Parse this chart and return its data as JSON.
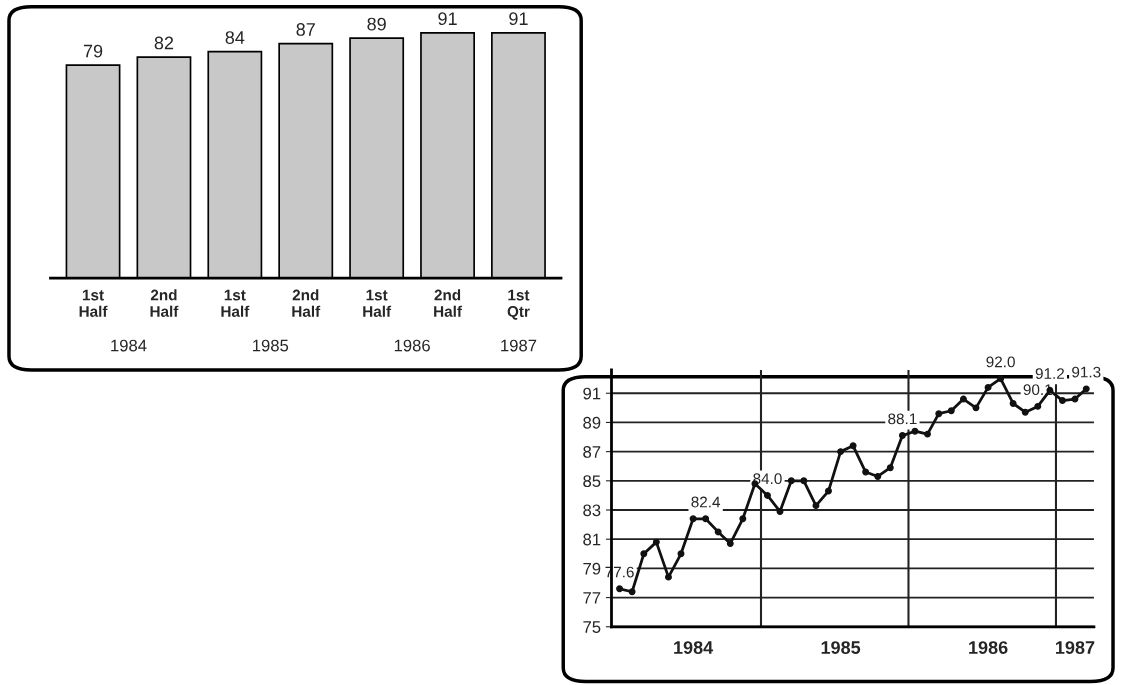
{
  "chart_data": [
    {
      "type": "bar",
      "categories": [
        "1st\nHalf",
        "2nd\nHalf",
        "1st\nHalf",
        "2nd\nHalf",
        "1st\nHalf",
        "2nd\nHalf",
        "1st\nQtr"
      ],
      "values": [
        79,
        82,
        84,
        87,
        89,
        91,
        91
      ],
      "color": "#c8c8c8",
      "data_labels": true,
      "tick_labels": "x",
      "annotations": [
        "1984",
        "1985",
        "1986",
        "1987"
      ]
    },
    {
      "type": "line",
      "x": [
        "1984-01",
        "1984-02",
        "1984-03",
        "1984-04",
        "1984-05",
        "1984-06",
        "1984-07",
        "1984-08",
        "1984-09",
        "1984-10",
        "1984-11",
        "1984-12",
        "1985-01",
        "1985-02",
        "1985-03",
        "1985-04",
        "1985-05",
        "1985-06",
        "1985-07",
        "1985-08",
        "1985-09",
        "1985-10",
        "1985-11",
        "1985-12",
        "1986-01",
        "1986-02",
        "1986-03",
        "1986-04",
        "1986-05",
        "1986-06",
        "1986-07",
        "1986-08",
        "1986-09",
        "1986-10",
        "1986-11",
        "1986-12",
        "1987-01",
        "1987-02",
        "1987-03"
      ],
      "values": [
        77.6,
        77.4,
        80.0,
        80.8,
        78.4,
        80.0,
        82.4,
        82.4,
        81.5,
        80.7,
        82.4,
        84.8,
        84.0,
        82.9,
        85.0,
        85.0,
        83.3,
        84.3,
        87.0,
        87.4,
        85.6,
        85.3,
        85.9,
        88.1,
        88.4,
        88.2,
        89.6,
        89.8,
        90.6,
        90.0,
        91.4,
        92.0,
        90.3,
        89.7,
        90.1,
        91.2,
        90.5,
        90.6,
        91.3
      ],
      "color": "#111111",
      "marker": "circle",
      "line_style": "solid",
      "xlim": [
        "1983-12-12",
        "1987-03-20"
      ],
      "ylim": [
        75,
        92.6
      ],
      "xticks": [
        {
          "value": "1984-07-01",
          "label": "1984"
        },
        {
          "value": "1985-07-01",
          "label": "1985"
        },
        {
          "value": "1986-07-01",
          "label": "1986"
        },
        {
          "value": "1987-02-01",
          "label": "1987"
        }
      ],
      "yticks": [
        75,
        77,
        79,
        81,
        83,
        85,
        87,
        89,
        91
      ],
      "grid": "y",
      "ref_lines": [
        {
          "axis": "x",
          "value": "1984-12-16",
          "label": null
        },
        {
          "axis": "x",
          "value": "1985-12-16",
          "label": null
        },
        {
          "axis": "x",
          "value": "1986-12-16",
          "label": null
        }
      ],
      "annotations": [
        {
          "text": "77.6",
          "x": "1984-01",
          "y": 77.6
        },
        {
          "text": "82.4",
          "x": "1984-08",
          "y": 82.4
        },
        {
          "text": "84.0",
          "x": "1985-01",
          "y": 84.0
        },
        {
          "text": "88.1",
          "x": "1985-12",
          "y": 88.1
        },
        {
          "text": "92.0",
          "x": "1986-08",
          "y": 92.0
        },
        {
          "text": "90.1",
          "x": "1986-11",
          "y": 90.1
        },
        {
          "text": "91.2",
          "x": "1986-12",
          "y": 91.2
        },
        {
          "text": "91.3",
          "x": "1987-03",
          "y": 91.3
        }
      ]
    }
  ]
}
